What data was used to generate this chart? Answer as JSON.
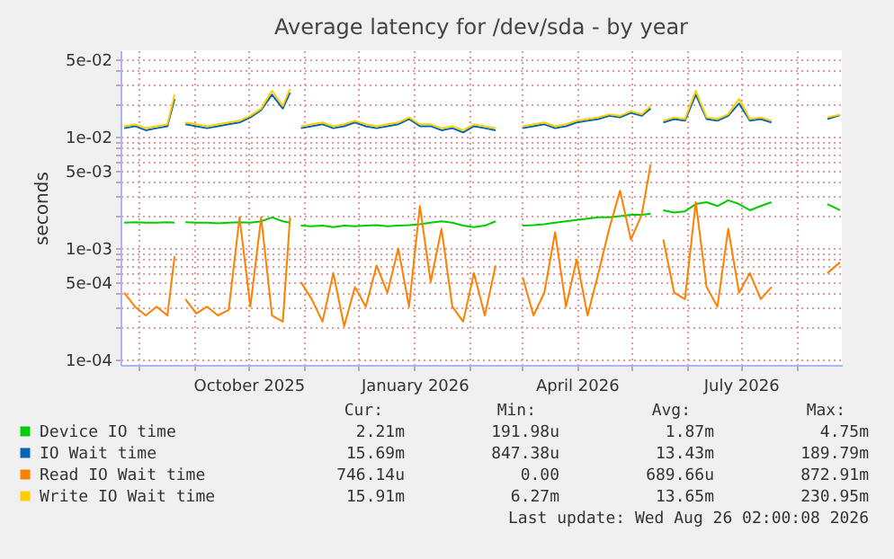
{
  "chart_data": {
    "type": "line",
    "title": "Average latency for /dev/sda - by year",
    "ylabel": "seconds",
    "x": [
      "2025-07-24",
      "2025-07-30",
      "2025-08-05",
      "2025-08-11",
      "2025-08-17",
      "2025-08-21",
      "2025-08-23",
      "2025-08-27",
      "2025-09-02",
      "2025-09-08",
      "2025-09-14",
      "2025-09-20",
      "2025-09-26",
      "2025-10-02",
      "2025-10-08",
      "2025-10-14",
      "2025-10-20",
      "2025-10-24",
      "2025-10-27",
      "2025-10-30",
      "2025-11-05",
      "2025-11-11",
      "2025-11-17",
      "2025-11-23",
      "2025-11-29",
      "2025-12-05",
      "2025-12-11",
      "2025-12-17",
      "2025-12-23",
      "2025-12-29",
      "2026-01-04",
      "2026-01-10",
      "2026-01-16",
      "2026-01-22",
      "2026-01-28",
      "2026-02-03",
      "2026-02-09",
      "2026-02-15",
      "2026-02-24",
      "2026-03-02",
      "2026-03-08",
      "2026-03-14",
      "2026-03-20",
      "2026-03-26",
      "2026-04-01",
      "2026-04-07",
      "2026-04-13",
      "2026-04-19",
      "2026-04-25",
      "2026-05-01",
      "2026-05-07",
      "2026-05-12",
      "2026-05-15",
      "2026-05-19",
      "2026-05-25",
      "2026-05-31",
      "2026-06-06",
      "2026-06-12",
      "2026-06-18",
      "2026-06-24",
      "2026-06-30",
      "2026-07-06",
      "2026-07-12",
      "2026-07-18",
      "2026-08-05",
      "2026-08-18",
      "2026-08-25"
    ],
    "series": [
      {
        "name": "Device IO time",
        "color": "#00cc00",
        "values": [
          0.0017,
          0.00172,
          0.0017,
          0.0017,
          0.00172,
          0.0017,
          null,
          0.00172,
          0.0017,
          0.0017,
          0.00168,
          0.0017,
          0.00172,
          0.0017,
          0.00175,
          0.0019,
          0.00175,
          0.0017,
          null,
          0.0016,
          0.00158,
          0.0016,
          0.00155,
          0.0016,
          0.00158,
          0.0016,
          0.00162,
          0.00158,
          0.0016,
          0.00162,
          0.00165,
          0.0017,
          0.00175,
          0.0017,
          0.0016,
          0.00155,
          0.0016,
          0.00175,
          null,
          0.0016,
          0.00162,
          0.00165,
          0.0017,
          0.00175,
          0.0018,
          0.00185,
          0.0019,
          0.0019,
          0.00195,
          0.002,
          0.002,
          0.00205,
          null,
          0.0022,
          0.0021,
          0.00215,
          0.0025,
          0.0026,
          0.0024,
          0.0027,
          0.0025,
          0.0022,
          0.0024,
          0.0026,
          null,
          0.0025,
          0.0022
        ]
      },
      {
        "name": "IO Wait time",
        "color": "#0066b3",
        "values": [
          0.012,
          0.0125,
          0.0115,
          0.012,
          0.0125,
          0.022,
          null,
          0.013,
          0.0125,
          0.012,
          0.0125,
          0.013,
          0.0135,
          0.015,
          0.0175,
          0.024,
          0.018,
          0.025,
          null,
          0.012,
          0.0125,
          0.013,
          0.012,
          0.0125,
          0.0135,
          0.0125,
          0.012,
          0.0125,
          0.013,
          0.0145,
          0.0125,
          0.0125,
          0.0115,
          0.012,
          0.011,
          0.0125,
          0.012,
          0.0115,
          null,
          0.012,
          0.0125,
          0.013,
          0.012,
          0.0125,
          0.0135,
          0.014,
          0.0145,
          0.0155,
          0.015,
          0.0165,
          0.0155,
          0.018,
          null,
          0.0135,
          0.0145,
          0.014,
          0.024,
          0.0145,
          0.014,
          0.0155,
          0.02,
          0.014,
          0.0145,
          0.0135,
          null,
          0.0145,
          0.0157
        ]
      },
      {
        "name": "Read IO Wait time",
        "color": "#ff8000",
        "values": [
          0.0004,
          0.0003,
          0.00025,
          0.0003,
          0.00025,
          0.00085,
          null,
          0.00035,
          0.00026,
          0.0003,
          0.00025,
          0.00028,
          0.0019,
          0.0003,
          0.0019,
          0.00025,
          0.00022,
          0.0019,
          null,
          0.0005,
          0.00035,
          0.00022,
          0.0006,
          0.0002,
          0.00045,
          0.0003,
          0.0007,
          0.0004,
          0.001,
          0.0003,
          0.0024,
          0.0005,
          0.0015,
          0.0003,
          0.00022,
          0.0006,
          0.00025,
          0.0007,
          null,
          0.00055,
          0.00025,
          0.0004,
          0.0014,
          0.0003,
          0.0008,
          0.00025,
          0.0006,
          0.0015,
          0.0033,
          0.0012,
          0.002,
          0.0057,
          null,
          0.0012,
          0.0004,
          0.00035,
          0.0026,
          0.00045,
          0.0003,
          0.0015,
          0.0004,
          0.0006,
          0.00035,
          0.00045,
          null,
          0.0006,
          0.00075
        ]
      },
      {
        "name": "Write IO Wait time",
        "color": "#ffcc00",
        "values": [
          0.0125,
          0.013,
          0.012,
          0.0125,
          0.013,
          0.024,
          null,
          0.0135,
          0.013,
          0.0125,
          0.013,
          0.0135,
          0.014,
          0.0155,
          0.018,
          0.026,
          0.019,
          0.027,
          null,
          0.0125,
          0.013,
          0.0135,
          0.0125,
          0.013,
          0.014,
          0.013,
          0.0125,
          0.013,
          0.0135,
          0.015,
          0.013,
          0.013,
          0.012,
          0.0125,
          0.0115,
          0.013,
          0.0125,
          0.012,
          null,
          0.0125,
          0.013,
          0.0135,
          0.0125,
          0.013,
          0.014,
          0.0145,
          0.015,
          0.016,
          0.0155,
          0.017,
          0.016,
          0.019,
          null,
          0.014,
          0.015,
          0.0145,
          0.026,
          0.015,
          0.0145,
          0.016,
          0.022,
          0.0145,
          0.015,
          0.014,
          null,
          0.015,
          0.0159
        ]
      }
    ],
    "xlim": [
      "2025-07-22",
      "2026-08-26"
    ],
    "xticks": [
      {
        "value": "2025-08-01",
        "label": null
      },
      {
        "value": "2025-09-01",
        "label": null
      },
      {
        "value": "2025-10-01",
        "label": "October 2025"
      },
      {
        "value": "2025-11-01",
        "label": null
      },
      {
        "value": "2025-12-01",
        "label": null
      },
      {
        "value": "2026-01-01",
        "label": "January 2026"
      },
      {
        "value": "2026-02-01",
        "label": null
      },
      {
        "value": "2026-03-01",
        "label": null
      },
      {
        "value": "2026-04-01",
        "label": "April 2026"
      },
      {
        "value": "2026-05-01",
        "label": null
      },
      {
        "value": "2026-06-01",
        "label": null
      },
      {
        "value": "2026-07-01",
        "label": "July 2026"
      },
      {
        "value": "2026-08-01",
        "label": null
      }
    ],
    "log": true,
    "ylim": [
      9e-05,
      0.06
    ],
    "yticks": [
      {
        "value": 0.0001,
        "label": "1e-04"
      },
      {
        "value": 0.0002,
        "label": null
      },
      {
        "value": 0.0003,
        "label": null
      },
      {
        "value": 0.0004,
        "label": null
      },
      {
        "value": 0.0005,
        "label": "5e-04"
      },
      {
        "value": 0.0006,
        "label": null
      },
      {
        "value": 0.0007,
        "label": null
      },
      {
        "value": 0.0008,
        "label": null
      },
      {
        "value": 0.0009,
        "label": null
      },
      {
        "value": 0.001,
        "label": "1e-03"
      },
      {
        "value": 0.002,
        "label": null
      },
      {
        "value": 0.003,
        "label": null
      },
      {
        "value": 0.004,
        "label": null
      },
      {
        "value": 0.005,
        "label": "5e-03"
      },
      {
        "value": 0.006,
        "label": null
      },
      {
        "value": 0.007,
        "label": null
      },
      {
        "value": 0.008,
        "label": null
      },
      {
        "value": 0.009,
        "label": null
      },
      {
        "value": 0.01,
        "label": "1e-02"
      },
      {
        "value": 0.02,
        "label": null
      },
      {
        "value": 0.03,
        "label": null
      },
      {
        "value": 0.04,
        "label": null
      },
      {
        "value": 0.05,
        "label": "5e-02"
      }
    ],
    "grid": true,
    "legend": "bottom",
    "marker": "none",
    "line_style": "solid",
    "annotations": [
      "Cur:",
      "Min:",
      "Avg:",
      "Max:",
      "2.21m",
      "191.98u",
      "1.87m",
      "4.75m",
      "15.69m",
      "847.38u",
      "13.43m",
      "189.79m",
      "746.14u",
      "0.00",
      "689.66u",
      "872.91m",
      "15.91m",
      "6.27m",
      "13.65m",
      "230.95m",
      "Last update: Wed Aug 26 02:00:08 2026"
    ]
  }
}
